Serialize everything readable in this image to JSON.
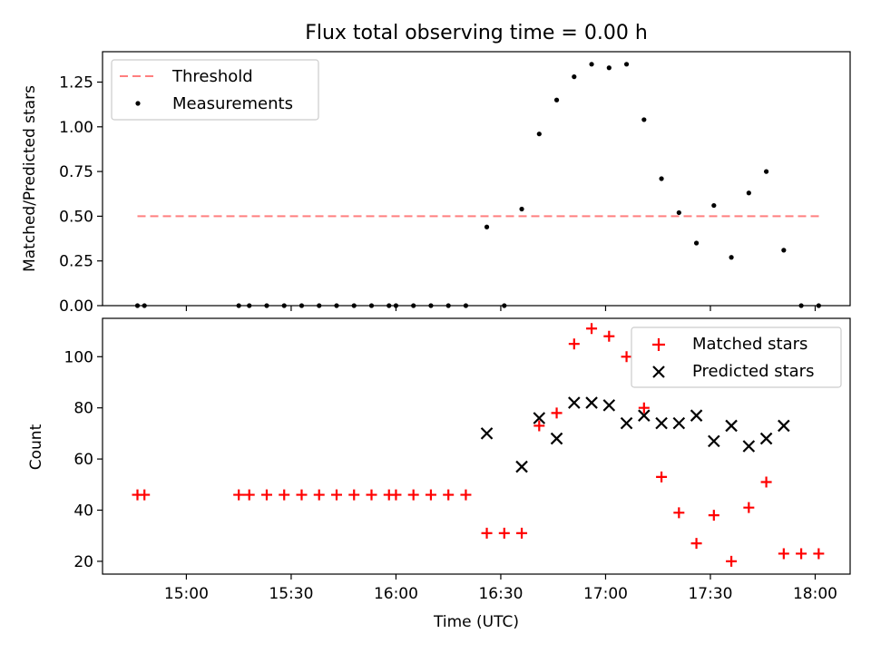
{
  "chart_data": [
    {
      "type": "scatter",
      "title": "Flux total observing time = 0.00 h",
      "xlabel": "",
      "ylabel": "Matched/Predicted stars",
      "ylim": [
        0,
        1.42
      ],
      "xlim": [
        "14:36",
        "18:10"
      ],
      "yticks": [
        0.0,
        0.25,
        0.5,
        0.75,
        1.0,
        1.25
      ],
      "ytick_labels": [
        "0.00",
        "0.25",
        "0.50",
        "0.75",
        "1.00",
        "1.25"
      ],
      "legend_position": "top-left",
      "series": [
        {
          "name": "Threshold",
          "kind": "dashed-line",
          "color": "#ff7f7f",
          "x": [
            "14:46",
            "18:02"
          ],
          "y": [
            0.5,
            0.5
          ]
        },
        {
          "name": "Measurements",
          "kind": "points",
          "color": "#000000",
          "x": [
            "14:46",
            "14:48",
            "15:15",
            "15:18",
            "15:23",
            "15:28",
            "15:33",
            "15:38",
            "15:43",
            "15:48",
            "15:53",
            "15:58",
            "16:00",
            "16:05",
            "16:10",
            "16:15",
            "16:20",
            "16:26",
            "16:31",
            "16:36",
            "16:41",
            "16:46",
            "16:51",
            "16:56",
            "17:01",
            "17:06",
            "17:11",
            "17:16",
            "17:21",
            "17:26",
            "17:31",
            "17:36",
            "17:41",
            "17:46",
            "17:51",
            "17:56",
            "18:01"
          ],
          "y": [
            0,
            0,
            0,
            0,
            0,
            0,
            0,
            0,
            0,
            0,
            0,
            0,
            0,
            0,
            0,
            0,
            0,
            0.44,
            0,
            0.54,
            0.96,
            1.15,
            1.28,
            1.35,
            1.33,
            1.35,
            1.04,
            0.71,
            0.52,
            0.35,
            0.56,
            0.27,
            0.63,
            0.75,
            0.31,
            0,
            0
          ]
        }
      ]
    },
    {
      "type": "scatter",
      "title": "",
      "xlabel": "Time (UTC)",
      "ylabel": "Count",
      "ylim": [
        15,
        115
      ],
      "xlim": [
        "14:36",
        "18:10"
      ],
      "yticks": [
        20,
        40,
        60,
        80,
        100
      ],
      "ytick_labels": [
        "20",
        "40",
        "60",
        "80",
        "100"
      ],
      "xticks": [
        "15:00",
        "15:30",
        "16:00",
        "16:30",
        "17:00",
        "17:30",
        "18:00"
      ],
      "xtick_labels": [
        "15:00",
        "15:30",
        "16:00",
        "16:30",
        "17:00",
        "17:30",
        "18:00"
      ],
      "legend_position": "top-right",
      "series": [
        {
          "name": "Matched stars",
          "kind": "plus",
          "color": "#ff0000",
          "x": [
            "14:46",
            "14:48",
            "15:15",
            "15:18",
            "15:23",
            "15:28",
            "15:33",
            "15:38",
            "15:43",
            "15:48",
            "15:53",
            "15:58",
            "16:00",
            "16:05",
            "16:10",
            "16:15",
            "16:20",
            "16:26",
            "16:31",
            "16:36",
            "16:41",
            "16:46",
            "16:51",
            "16:56",
            "17:01",
            "17:06",
            "17:11",
            "17:16",
            "17:21",
            "17:26",
            "17:31",
            "17:36",
            "17:41",
            "17:46",
            "17:51",
            "17:56",
            "18:01"
          ],
          "y": [
            46,
            46,
            46,
            46,
            46,
            46,
            46,
            46,
            46,
            46,
            46,
            46,
            46,
            46,
            46,
            46,
            46,
            31,
            31,
            31,
            73,
            78,
            105,
            111,
            108,
            100,
            80,
            53,
            39,
            27,
            38,
            20,
            41,
            51,
            23,
            23,
            23
          ]
        },
        {
          "name": "Predicted stars",
          "kind": "x",
          "color": "#000000",
          "x": [
            "16:26",
            "16:36",
            "16:41",
            "16:46",
            "16:51",
            "16:56",
            "17:01",
            "17:06",
            "17:11",
            "17:16",
            "17:21",
            "17:26",
            "17:31",
            "17:36",
            "17:41",
            "17:46",
            "17:51"
          ],
          "y": [
            70,
            57,
            76,
            68,
            82,
            82,
            81,
            74,
            77,
            74,
            74,
            77,
            67,
            73,
            65,
            68,
            73
          ]
        }
      ]
    }
  ]
}
